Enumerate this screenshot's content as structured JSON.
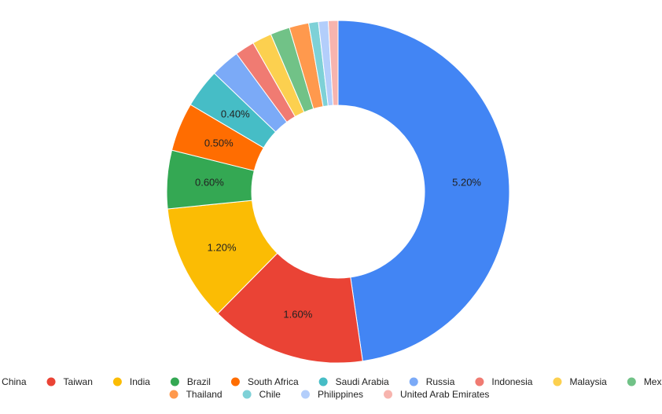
{
  "chart_data": {
    "type": "pie",
    "donut": true,
    "title": "",
    "categories": [
      "China",
      "Taiwan",
      "India",
      "Brazil",
      "South Africa",
      "Saudi Arabia",
      "Russia",
      "Indonesia",
      "Malaysia",
      "Mexico",
      "Thailand",
      "Chile",
      "Philippines",
      "United Arab Emirates"
    ],
    "values": [
      5.2,
      1.6,
      1.2,
      0.6,
      0.5,
      0.4,
      0.3,
      0.2,
      0.2,
      0.2,
      0.2,
      0.1,
      0.1,
      0.1
    ],
    "data_labels": [
      "5.20%",
      "1.60%",
      "1.20%",
      "0.60%",
      "0.50%",
      "0.40%",
      "",
      "",
      "",
      "",
      "",
      "",
      "",
      ""
    ],
    "colors": [
      "#4285f4",
      "#ea4335",
      "#fbbc04",
      "#34a853",
      "#ff6d01",
      "#46bdc6",
      "#7baaf7",
      "#f07b72",
      "#fcd04f",
      "#71c287",
      "#ff994d",
      "#7ed1d7",
      "#b3cefb",
      "#f7b4ae"
    ],
    "legend_position": "bottom",
    "unit": "%"
  }
}
